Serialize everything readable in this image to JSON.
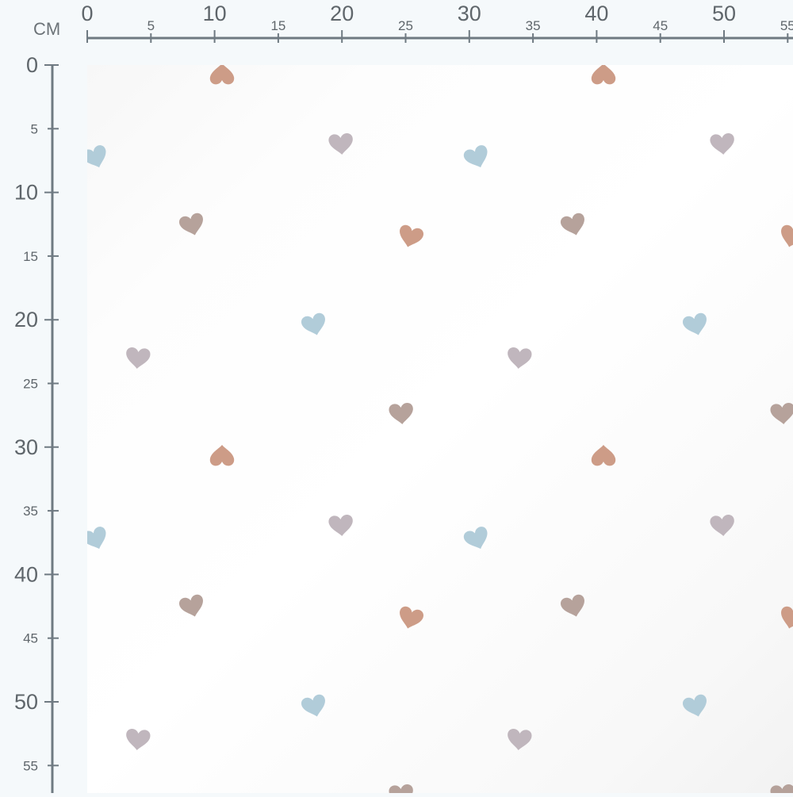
{
  "ruler": {
    "unit_label": "CM",
    "color": "#6f7a82",
    "top_labels": [
      "0",
      "5",
      "10",
      "15",
      "20",
      "25",
      "30",
      "35",
      "40",
      "45",
      "50",
      "55"
    ],
    "left_labels": [
      "0",
      "5",
      "10",
      "15",
      "20",
      "25",
      "30",
      "35",
      "40",
      "45",
      "50",
      "55"
    ]
  },
  "fabric": {
    "pattern": "watercolor hearts",
    "background": "#ffffff",
    "heart_colors": {
      "terracotta": "#c8917a",
      "blue": "#a9c7d5",
      "mauve": "#b9aeb6",
      "taupe": "#ae9890"
    }
  }
}
